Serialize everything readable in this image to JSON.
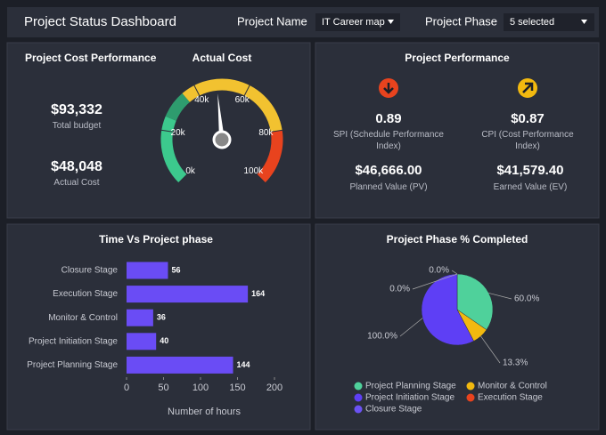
{
  "header": {
    "title": "Project Status Dashboard",
    "filters": [
      {
        "label": "Project Name",
        "value": "IT Career map"
      },
      {
        "label": "Project Phase",
        "value": "5 selected"
      }
    ]
  },
  "cost_performance": {
    "title": "Project Cost Performance",
    "kpis": [
      {
        "value": "$93,332",
        "label": "Total budget"
      },
      {
        "value": "$48,048",
        "label": "Actual Cost"
      }
    ]
  },
  "project_performance": {
    "title": "Project Performance",
    "indices": [
      {
        "value": "0.89",
        "label": "SPI (Schedule Performance Index)",
        "trend": "down",
        "color": "#e8431e"
      },
      {
        "value": "$0.87",
        "label": "CPI (Cost Performance Index)",
        "trend": "up",
        "color": "#f2b90f"
      }
    ],
    "amounts": [
      {
        "value": "$46,666.00",
        "label": "Planned Value (PV)"
      },
      {
        "value": "$41,579.40",
        "label": "Earned Value (EV)"
      }
    ]
  },
  "chart_data": [
    {
      "type": "gauge",
      "title": "Actual Cost",
      "value": 48048,
      "ylim": [
        0,
        100000
      ],
      "yticks": [
        {
          "value": 0,
          "label": "0k"
        },
        {
          "value": 20000,
          "label": "20k"
        },
        {
          "value": 40000,
          "label": "40k"
        },
        {
          "value": 60000,
          "label": "60k"
        },
        {
          "value": 80000,
          "label": "80k"
        },
        {
          "value": 100000,
          "label": "100k"
        }
      ],
      "bands": [
        {
          "from": 0,
          "to": 25000,
          "color": "#3cc98d"
        },
        {
          "from": 25000,
          "to": 35000,
          "color": "#2e9c6e"
        },
        {
          "from": 35000,
          "to": 80000,
          "color": "#f2c230"
        },
        {
          "from": 80000,
          "to": 100000,
          "color": "#e8431e"
        }
      ]
    },
    {
      "type": "bar",
      "orientation": "horizontal",
      "title": "Time Vs Project phase",
      "x_label": "Number of hours",
      "categories": [
        "Closure Stage",
        "Execution Stage",
        "Monitor & Control",
        "Project Initiation Stage",
        "Project Planning Stage"
      ],
      "values": [
        56,
        164,
        36,
        40,
        144
      ],
      "color": "#6a4cf5",
      "xlim": [
        0,
        200
      ],
      "xticks": [
        0,
        50,
        100,
        150,
        200
      ]
    },
    {
      "type": "pie",
      "title": "Project Phase % Completed",
      "categories": [
        "Project Planning Stage",
        "Monitor & Control",
        "Project Initiation Stage",
        "Execution Stage",
        "Closure Stage"
      ],
      "values": [
        60,
        13.3,
        100,
        0,
        0
      ],
      "value_labels": [
        "60.0%",
        "13.3%",
        "100.0%",
        "0.0%",
        "0.0%"
      ],
      "colors": [
        "#4fd19b",
        "#f2b90f",
        "#5e3ff5",
        "#e8431e",
        "#6b52f2"
      ]
    }
  ]
}
